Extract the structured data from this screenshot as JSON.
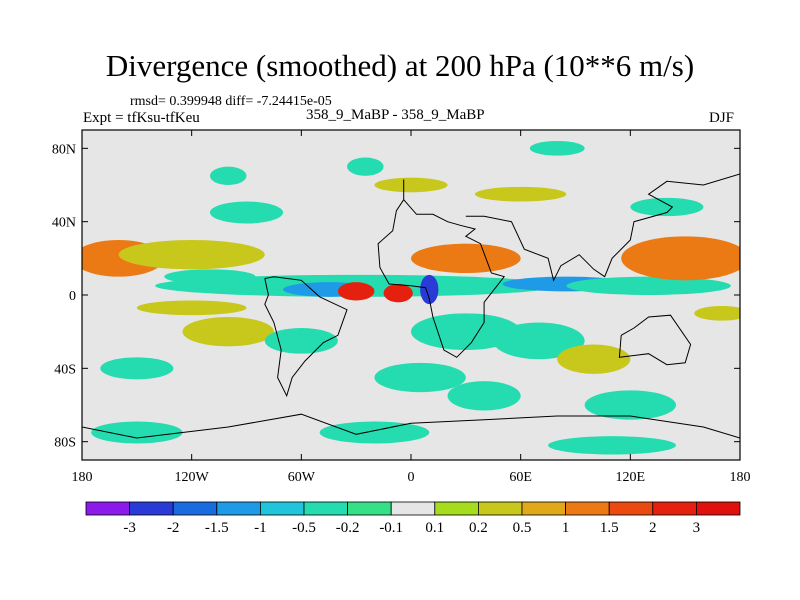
{
  "chart_data": {
    "type": "heatmap",
    "title": "Divergence (smoothed) at 200 hPa (10**6 m/s)",
    "info_left": "rmsd= 0.399948 diff= -7.24415e-05",
    "experiment": "Expt = tfKsu-tfKeu",
    "center_label": "358_9_MaBP - 358_9_MaBP",
    "season": "DJF",
    "x_range": [
      -180,
      180
    ],
    "y_range": [
      -90,
      90
    ],
    "x_ticks": [
      {
        "value": -180,
        "label": "180"
      },
      {
        "value": -120,
        "label": "120W"
      },
      {
        "value": -60,
        "label": "60W"
      },
      {
        "value": 0,
        "label": "0"
      },
      {
        "value": 60,
        "label": "60E"
      },
      {
        "value": 120,
        "label": "120E"
      },
      {
        "value": 180,
        "label": "180"
      }
    ],
    "y_ticks": [
      {
        "value": 80,
        "label": "80N"
      },
      {
        "value": 40,
        "label": "40N"
      },
      {
        "value": 0,
        "label": "0"
      },
      {
        "value": -40,
        "label": "40S"
      },
      {
        "value": -80,
        "label": "80S"
      }
    ],
    "colorbar": {
      "levels": [
        "-3",
        "-2",
        "-1.5",
        "-1",
        "-0.5",
        "-0.2",
        "-0.1",
        "0.1",
        "0.2",
        "0.5",
        "1",
        "1.5",
        "2",
        "3"
      ],
      "colors": [
        "#8c1aeb",
        "#2a3ad6",
        "#1a6ae0",
        "#1e9ae6",
        "#22c4dc",
        "#25dcb0",
        "#35e087",
        "#e6e6e6",
        "#a6dc1e",
        "#c8c81c",
        "#e0a81a",
        "#ec7a14",
        "#ea4a10",
        "#e6200e",
        "#e0100e"
      ]
    },
    "features": [
      {
        "class": -1,
        "lon": -30,
        "lat": 5,
        "rx": 110,
        "ry": 6
      },
      {
        "class": -2,
        "lon": -45,
        "lat": 3,
        "rx": 25,
        "ry": 4
      },
      {
        "class": -2,
        "lon": 85,
        "lat": 6,
        "rx": 35,
        "ry": 4
      },
      {
        "class": -1,
        "lon": 130,
        "lat": 5,
        "rx": 45,
        "ry": 5
      },
      {
        "class": 2,
        "lon": -160,
        "lat": 20,
        "rx": 25,
        "ry": 10
      },
      {
        "class": 2,
        "lon": 150,
        "lat": 20,
        "rx": 35,
        "ry": 12
      },
      {
        "class": 1,
        "lon": -120,
        "lat": 22,
        "rx": 40,
        "ry": 8
      },
      {
        "class": 3,
        "lon": -30,
        "lat": 2,
        "rx": 10,
        "ry": 5
      },
      {
        "class": 3,
        "lon": -7,
        "lat": 1,
        "rx": 8,
        "ry": 5
      },
      {
        "class": -3,
        "lon": 10,
        "lat": 3,
        "rx": 5,
        "ry": 8
      },
      {
        "class": 2,
        "lon": 30,
        "lat": 20,
        "rx": 30,
        "ry": 8
      },
      {
        "class": -1,
        "lon": 30,
        "lat": -20,
        "rx": 30,
        "ry": 10
      },
      {
        "class": -1,
        "lon": 70,
        "lat": -25,
        "rx": 25,
        "ry": 10
      },
      {
        "class": -1,
        "lon": 5,
        "lat": -45,
        "rx": 25,
        "ry": 8
      },
      {
        "class": 1,
        "lon": -100,
        "lat": -20,
        "rx": 25,
        "ry": 8
      },
      {
        "class": -1,
        "lon": -60,
        "lat": -25,
        "rx": 20,
        "ry": 7
      },
      {
        "class": 1,
        "lon": 100,
        "lat": -35,
        "rx": 20,
        "ry": 8
      },
      {
        "class": -1,
        "lon": 120,
        "lat": -60,
        "rx": 25,
        "ry": 8
      },
      {
        "class": -1,
        "lon": 40,
        "lat": -55,
        "rx": 20,
        "ry": 8
      },
      {
        "class": -1,
        "lon": -150,
        "lat": -40,
        "rx": 20,
        "ry": 6
      },
      {
        "class": -1,
        "lon": -150,
        "lat": -75,
        "rx": 25,
        "ry": 6
      },
      {
        "class": -1,
        "lon": -20,
        "lat": -75,
        "rx": 30,
        "ry": 6
      },
      {
        "class": -1,
        "lon": 110,
        "lat": -82,
        "rx": 35,
        "ry": 5
      },
      {
        "class": -1,
        "lon": -90,
        "lat": 45,
        "rx": 20,
        "ry": 6
      },
      {
        "class": -1,
        "lon": 140,
        "lat": 48,
        "rx": 20,
        "ry": 5
      },
      {
        "class": -1,
        "lon": -100,
        "lat": 65,
        "rx": 10,
        "ry": 5
      },
      {
        "class": -1,
        "lon": -25,
        "lat": 70,
        "rx": 10,
        "ry": 5
      },
      {
        "class": -1,
        "lon": 80,
        "lat": 80,
        "rx": 15,
        "ry": 4
      },
      {
        "class": -1,
        "lon": -110,
        "lat": 10,
        "rx": 25,
        "ry": 4
      },
      {
        "class": 1,
        "lon": -120,
        "lat": -7,
        "rx": 30,
        "ry": 4
      },
      {
        "class": 1,
        "lon": 170,
        "lat": -10,
        "rx": 15,
        "ry": 4
      },
      {
        "class": 1,
        "lon": 60,
        "lat": 55,
        "rx": 25,
        "ry": 4
      },
      {
        "class": 1,
        "lon": 0,
        "lat": 60,
        "rx": 20,
        "ry": 4
      }
    ]
  }
}
